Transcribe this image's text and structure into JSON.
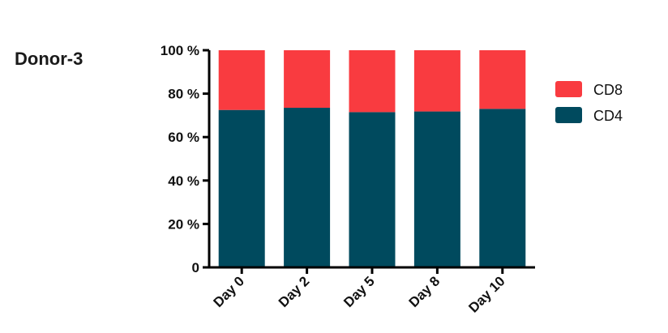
{
  "panel_label": "Donor-3",
  "chart_data": {
    "type": "bar",
    "stacked": true,
    "categories": [
      "Day 0",
      "Day 2",
      "Day 5",
      "Day 8",
      "Day 10"
    ],
    "series": [
      {
        "name": "CD4",
        "color": "#004a5e",
        "values": [
          72.5,
          73.5,
          71.5,
          71.8,
          73.0
        ]
      },
      {
        "name": "CD8",
        "color": "#f93b40",
        "values": [
          27.5,
          26.5,
          28.5,
          28.2,
          27.0
        ]
      }
    ],
    "yticks": [
      "0",
      "20 %",
      "40 %",
      "60 %",
      "80 %",
      "100 %"
    ],
    "ytick_values": [
      0,
      20,
      40,
      60,
      80,
      100
    ],
    "ylim": [
      0,
      100
    ],
    "legend": [
      {
        "label": "CD8",
        "color": "#f93b40"
      },
      {
        "label": "CD4",
        "color": "#004a5e"
      }
    ],
    "legend_position": "right",
    "grid": false
  }
}
